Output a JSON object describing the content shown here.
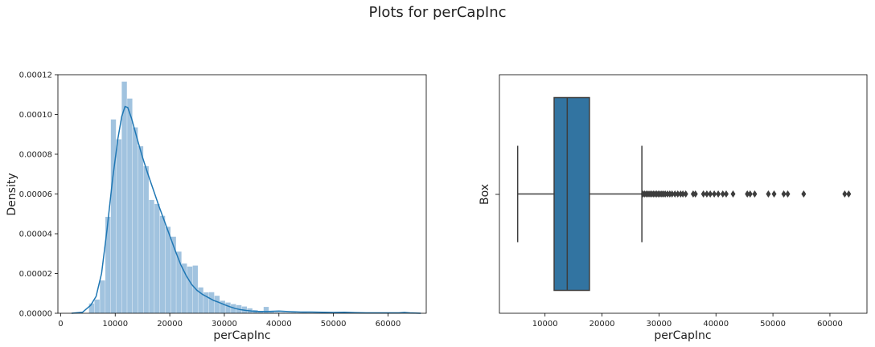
{
  "figure": {
    "suptitle": "Plots for perCapInc"
  },
  "colors": {
    "hist_fill": "#a1c3df",
    "kde_line": "#1f77b4",
    "box_fill": "#3274a1",
    "box_line": "#3d3d3d",
    "axis": "#000000"
  },
  "chart_data": [
    {
      "type": "histogram",
      "xlabel": "perCapInc",
      "ylabel": "Density",
      "xlim": [
        -500,
        67000
      ],
      "ylim": [
        0,
        0.00012
      ],
      "xticks": [
        0,
        10000,
        20000,
        30000,
        40000,
        50000,
        60000
      ],
      "yticks": [
        0,
        2e-05,
        4e-05,
        6e-05,
        8e-05,
        0.0001,
        0.00012
      ],
      "xtick_labels": [
        "0",
        "10000",
        "20000",
        "30000",
        "40000",
        "50000",
        "60000"
      ],
      "ytick_labels": [
        "0.00000",
        "0.00002",
        "0.00004",
        "0.00006",
        "0.00008",
        "0.00010",
        "0.00012"
      ],
      "bin_start": 5200,
      "bin_width": 1000,
      "bin_density": [
        4.9e-06,
        6.9e-06,
        1.65e-05,
        4.85e-05,
        9.75e-05,
        8.75e-05,
        0.0001165,
        0.000108,
        9.35e-05,
        8.4e-05,
        7.4e-05,
        5.7e-05,
        5.5e-05,
        4.9e-05,
        4.35e-05,
        3.85e-05,
        3.1e-05,
        2.5e-05,
        2.35e-05,
        2.4e-05,
        1.3e-05,
        1.05e-05,
        1.06e-05,
        8.8e-06,
        6.3e-06,
        5.4e-06,
        4.6e-06,
        4.1e-06,
        3.4e-06,
        2.5e-06,
        1.6e-06,
        1.1e-06,
        3.2e-06,
        7e-07,
        5e-07,
        4e-07,
        3e-07,
        3e-07,
        2e-07,
        3e-07,
        2e-07,
        2e-07,
        1e-07,
        2e-07,
        1e-07,
        1e-07,
        1e-07,
        1e-07,
        1e-07,
        1e-07,
        0.0,
        1e-07,
        0.0,
        0.0,
        0.0,
        0.0,
        0.0,
        1e-07,
        1e-07
      ],
      "kde_x": [
        2000,
        4000,
        5500,
        6500,
        7500,
        8500,
        9500,
        10500,
        11200,
        11800,
        12300,
        13000,
        14000,
        15000,
        16000,
        17000,
        18000,
        19000,
        20000,
        21000,
        22000,
        23000,
        24000,
        25000,
        26000,
        27000,
        28000,
        29000,
        30000,
        31000,
        32000,
        33000,
        34000,
        35000,
        36000,
        38000,
        40000,
        42000,
        44000,
        46000,
        48000,
        50000,
        52000,
        54000,
        56000,
        58000,
        60000,
        62000,
        63000,
        64000,
        66000
      ],
      "kde_y": [
        0.0,
        5e-07,
        4e-06,
        8.5e-06,
        2e-05,
        4.2e-05,
        6.7e-05,
        8.8e-05,
        9.9e-05,
        0.000104,
        0.0001035,
        9.8e-05,
        8.8e-05,
        7.85e-05,
        7e-05,
        6.2e-05,
        5.4e-05,
        4.65e-05,
        3.9e-05,
        3.15e-05,
        2.45e-05,
        1.9e-05,
        1.45e-05,
        1.15e-05,
        9.5e-06,
        8e-06,
        6.5e-06,
        5.5e-06,
        4.3e-06,
        3.3e-06,
        2.4e-06,
        1.8e-06,
        1.4e-06,
        1.1e-06,
        9e-07,
        9e-07,
        1.1e-06,
        8e-07,
        6e-07,
        6e-07,
        5e-07,
        4e-07,
        5e-07,
        3e-07,
        2e-07,
        2e-07,
        2e-07,
        2e-07,
        4e-07,
        2e-07,
        0.0
      ]
    },
    {
      "type": "box",
      "xlabel": "perCapInc",
      "ylabel": "Box",
      "xlim": [
        2000,
        66500
      ],
      "xticks": [
        10000,
        20000,
        30000,
        40000,
        50000,
        60000
      ],
      "xtick_labels": [
        "10000",
        "20000",
        "30000",
        "40000",
        "50000",
        "60000"
      ],
      "whisker_low": 5200,
      "q1": 11600,
      "median": 13900,
      "q3": 17800,
      "whisker_high": 27000,
      "outliers": [
        27200,
        27500,
        27800,
        28100,
        28400,
        28700,
        29000,
        29300,
        29600,
        29900,
        30200,
        30500,
        30800,
        31100,
        31500,
        31900,
        32300,
        32800,
        33300,
        33800,
        34200,
        34700,
        36000,
        36400,
        37800,
        38400,
        39000,
        39700,
        40400,
        41200,
        41800,
        43000,
        45500,
        46000,
        46800,
        49200,
        50200,
        51900,
        52600,
        55400,
        62600,
        63300
      ]
    }
  ]
}
